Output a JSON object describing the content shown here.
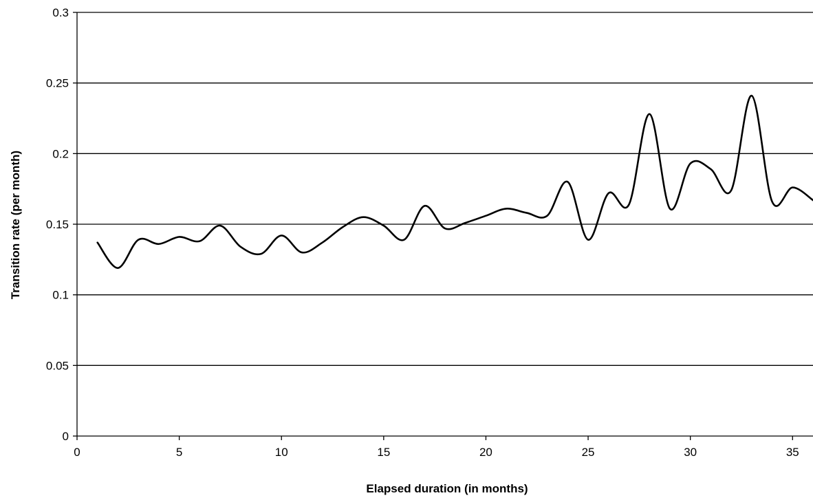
{
  "chart_data": {
    "type": "line",
    "title": "",
    "xlabel": "Elapsed duration (in months)",
    "ylabel": "Transition rate (per month)",
    "xlim": [
      0,
      36
    ],
    "ylim": [
      0,
      0.3
    ],
    "x_ticks": [
      0,
      5,
      10,
      15,
      20,
      25,
      30,
      35
    ],
    "x_tick_labels": [
      "0",
      "5",
      "10",
      "15",
      "20",
      "25",
      "30",
      "35"
    ],
    "y_ticks": [
      0,
      0.05,
      0.1,
      0.15,
      0.2,
      0.25,
      0.3
    ],
    "y_tick_labels": [
      "0",
      "0.05",
      "0.1",
      "0.15",
      "0.2",
      "0.25",
      "0.3"
    ],
    "grid": "horizontal",
    "legend": "none",
    "line_color": "#000000",
    "series": [
      {
        "x": [
          1,
          2,
          3,
          4,
          5,
          6,
          7,
          8,
          9,
          10,
          11,
          12,
          13,
          14,
          15,
          16,
          17,
          18,
          19,
          20,
          21,
          22,
          23,
          24,
          25,
          26,
          27,
          28,
          29,
          30,
          31,
          32,
          33,
          34,
          35,
          36
        ],
        "values": [
          0.137,
          0.119,
          0.139,
          0.136,
          0.141,
          0.138,
          0.149,
          0.134,
          0.129,
          0.142,
          0.13,
          0.137,
          0.148,
          0.155,
          0.149,
          0.139,
          0.163,
          0.147,
          0.151,
          0.156,
          0.161,
          0.158,
          0.156,
          0.18,
          0.139,
          0.172,
          0.164,
          0.228,
          0.161,
          0.193,
          0.189,
          0.174,
          0.241,
          0.166,
          0.176,
          0.167
        ]
      }
    ]
  }
}
